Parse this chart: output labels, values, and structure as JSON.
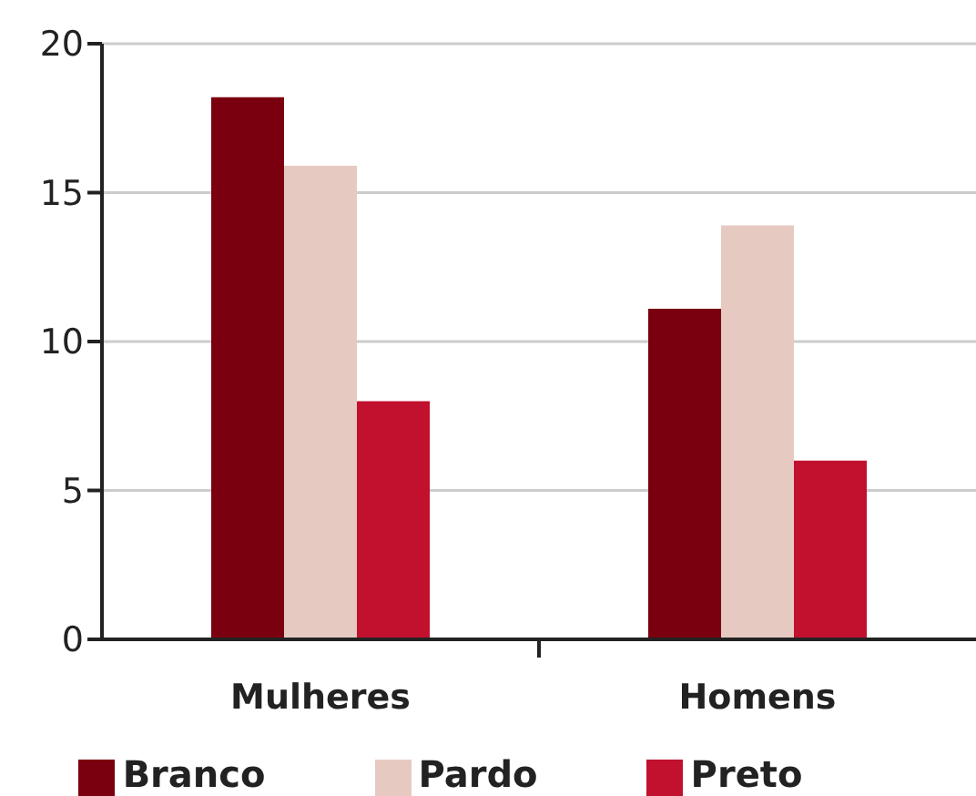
{
  "chart_data": {
    "type": "bar",
    "categories": [
      "Mulheres",
      "Homens"
    ],
    "series": [
      {
        "name": "Branco",
        "color": "#7a0010",
        "values": [
          18.2,
          11.1
        ]
      },
      {
        "name": "Pardo",
        "color": "#e6cac1",
        "values": [
          15.9,
          13.9
        ]
      },
      {
        "name": "Preto",
        "color": "#c1112f",
        "values": [
          8.0,
          6.0
        ]
      }
    ],
    "ylim": [
      0,
      20
    ],
    "yticks": [
      0,
      5,
      10,
      15,
      20
    ],
    "grid": "y",
    "legend": "bottom"
  }
}
